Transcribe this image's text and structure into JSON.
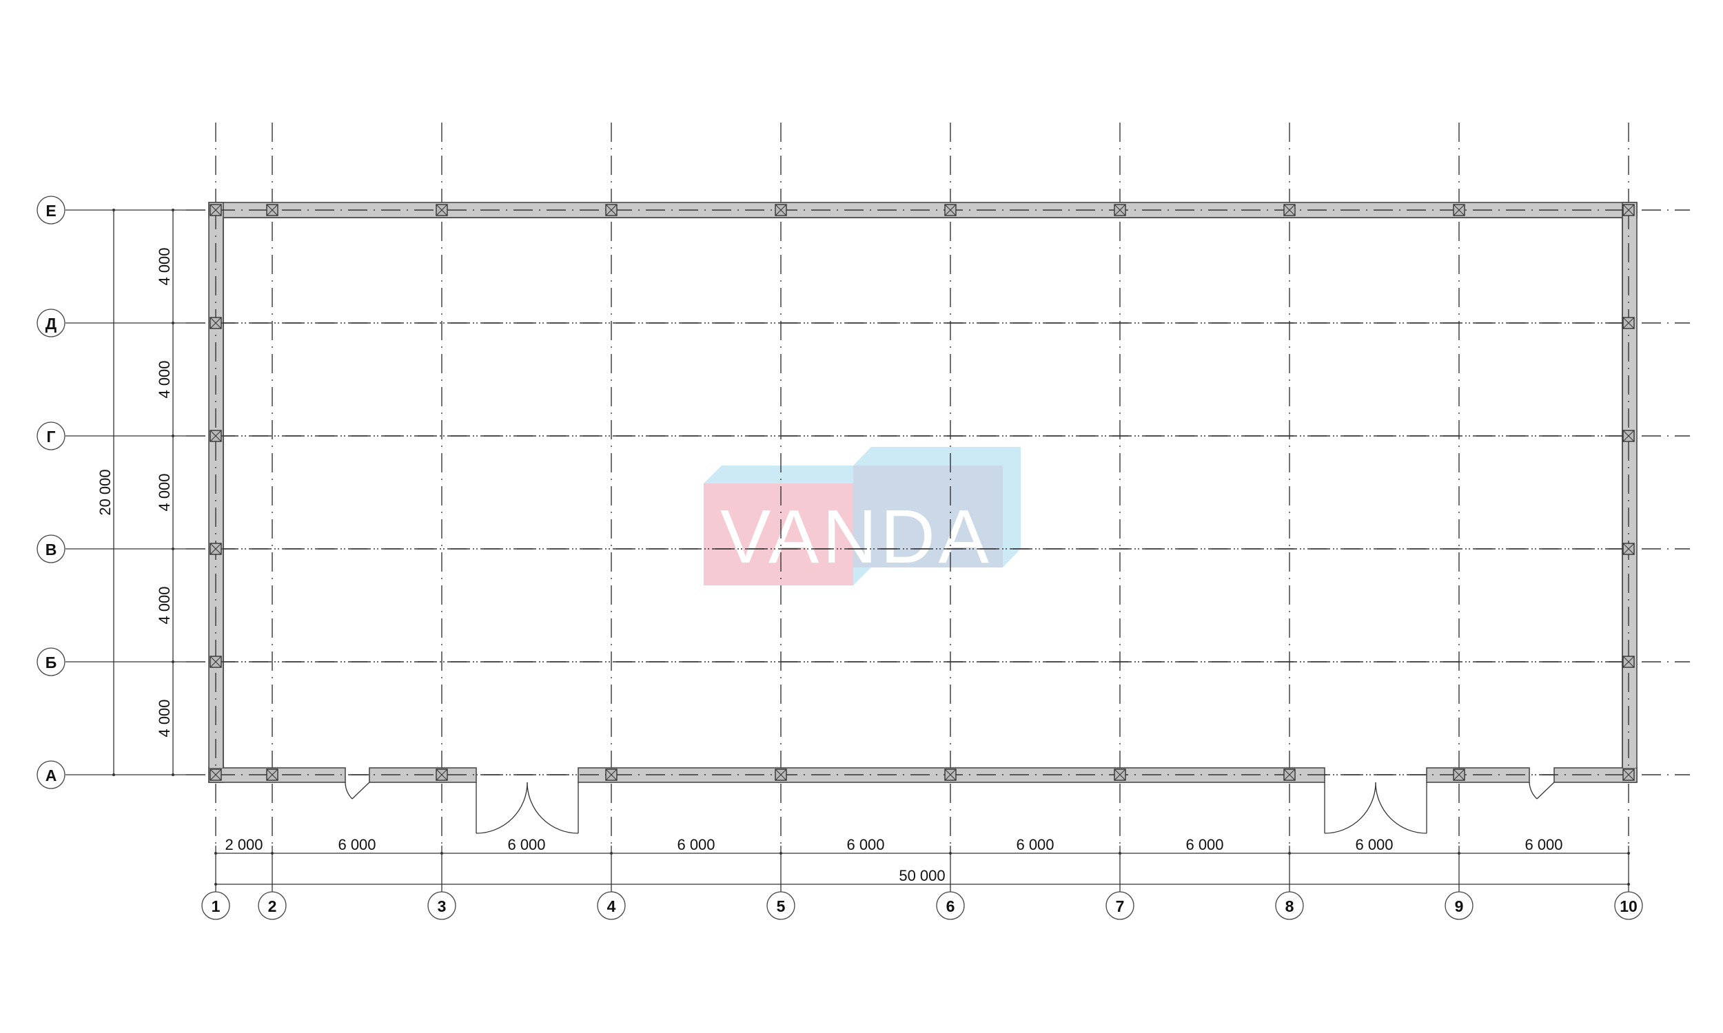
{
  "axes": {
    "columns": [
      "1",
      "2",
      "3",
      "4",
      "5",
      "6",
      "7",
      "8",
      "9",
      "10"
    ],
    "rows_top_to_bottom": [
      "Е",
      "Д",
      "Г",
      "В",
      "Б",
      "А"
    ]
  },
  "dimensions": {
    "horizontal": [
      "2 000",
      "6 000",
      "6 000",
      "6 000",
      "6 000",
      "6 000",
      "6 000",
      "6 000",
      "6 000"
    ],
    "horizontal_total": "50 000",
    "vertical_top_to_bottom": [
      "4 000",
      "4 000",
      "4 000",
      "4 000",
      "4 000"
    ],
    "vertical_total": "20 000"
  },
  "watermark": {
    "text": "VANDA",
    "colors": {
      "pink": "#f6cad3",
      "light_blue": "#cce9f6",
      "grey_blue": "#cbd8e8",
      "text": "#ffffff"
    }
  },
  "colors": {
    "wall": "#c9c9c9",
    "lines": "#333333"
  }
}
